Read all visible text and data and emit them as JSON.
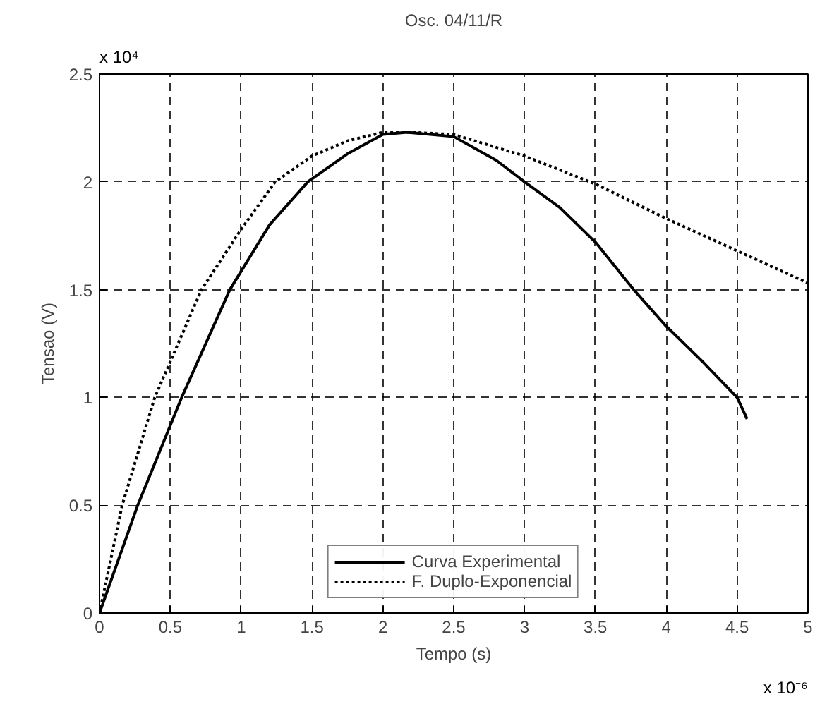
{
  "chart_data": {
    "type": "line",
    "title": "Osc. 04/11/R",
    "xlabel": "Tempo (s)",
    "ylabel": "Tensao (V)",
    "annotations": [
      "x 10⁴",
      "x 10⁻⁶"
    ],
    "xlim": [
      0,
      5
    ],
    "ylim": [
      0,
      2.5
    ],
    "xticks": [
      0,
      0.5,
      1,
      1.5,
      2,
      2.5,
      3,
      3.5,
      4,
      4.5,
      5
    ],
    "yticks": [
      0,
      0.5,
      1,
      1.5,
      2,
      2.5
    ],
    "grid": true,
    "legend": "bottom",
    "marker": "none",
    "series": [
      {
        "name": "Curva Experimental",
        "color": "#000000",
        "line_style": "solid",
        "x": [
          0,
          0.27,
          0.58,
          0.92,
          1.2,
          1.47,
          1.75,
          2,
          2.17,
          2.5,
          2.8,
          3,
          3.25,
          3.5,
          3.77,
          4,
          4.25,
          4.5,
          4.57
        ],
        "values": [
          0,
          0.5,
          1,
          1.5,
          1.8,
          2,
          2.13,
          2.22,
          2.23,
          2.21,
          2.1,
          2,
          1.88,
          1.72,
          1.5,
          1.33,
          1.17,
          1,
          0.9
        ]
      },
      {
        "name": "F. Duplo-Exponencial",
        "color": "#000000",
        "line_style": "dotted",
        "x": [
          0,
          0.16,
          0.39,
          0.72,
          1,
          1.24,
          1.5,
          1.75,
          2,
          2.2,
          2.5,
          3,
          3.5,
          4,
          4.5,
          5
        ],
        "values": [
          0,
          0.5,
          1,
          1.5,
          1.78,
          2,
          2.12,
          2.19,
          2.23,
          2.23,
          2.22,
          2.12,
          1.99,
          1.83,
          1.68,
          1.53
        ]
      }
    ]
  }
}
